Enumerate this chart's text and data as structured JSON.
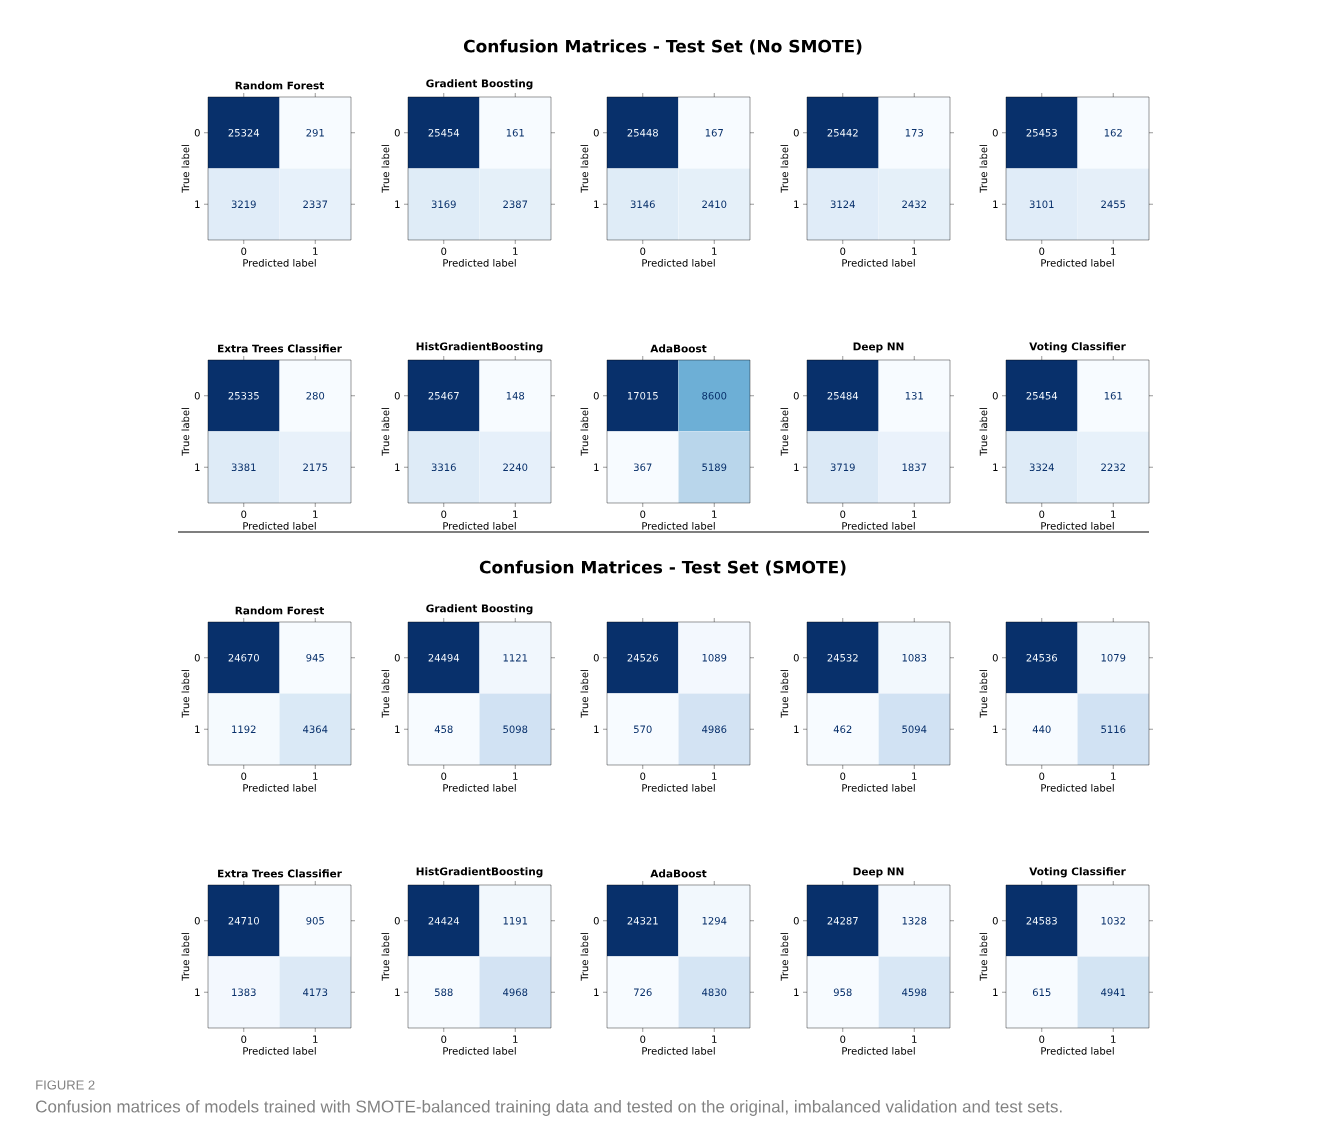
{
  "chart_data": [
    {
      "type": "heatmap",
      "title": "Random Forest",
      "xlabel": "Predicted label",
      "ylabel": "True label",
      "categories": [
        "0",
        "1"
      ],
      "y_categories": [
        "0",
        "1"
      ],
      "cells": [
        [
          25324,
          291
        ],
        [
          3219,
          2337
        ]
      ],
      "data_labels": true,
      "annotations": [
        "Confusion Matrices - Test Set (No SMOTE)"
      ]
    },
    {
      "type": "heatmap",
      "title": "Gradient Boosting",
      "xlabel": "Predicted label",
      "ylabel": "True label",
      "categories": [
        "0",
        "1"
      ],
      "y_categories": [
        "0",
        "1"
      ],
      "cells": [
        [
          25454,
          161
        ],
        [
          3169,
          2387
        ]
      ],
      "data_labels": true
    },
    {
      "type": "heatmap",
      "xlabel": "Predicted label",
      "ylabel": "True label",
      "categories": [
        "0",
        "1"
      ],
      "y_categories": [
        "0",
        "1"
      ],
      "cells": [
        [
          25448,
          167
        ],
        [
          3146,
          2410
        ]
      ],
      "data_labels": true
    },
    {
      "type": "heatmap",
      "xlabel": "Predicted label",
      "ylabel": "True label",
      "categories": [
        "0",
        "1"
      ],
      "y_categories": [
        "0",
        "1"
      ],
      "cells": [
        [
          25442,
          173
        ],
        [
          3124,
          2432
        ]
      ],
      "data_labels": true
    },
    {
      "type": "heatmap",
      "xlabel": "Predicted label",
      "ylabel": "True label",
      "categories": [
        "0",
        "1"
      ],
      "y_categories": [
        "0",
        "1"
      ],
      "cells": [
        [
          25453,
          162
        ],
        [
          3101,
          2455
        ]
      ],
      "data_labels": true
    },
    {
      "type": "heatmap",
      "title": "Extra Trees Classifier",
      "xlabel": "Predicted label",
      "ylabel": "True label",
      "categories": [
        "0",
        "1"
      ],
      "y_categories": [
        "0",
        "1"
      ],
      "cells": [
        [
          25335,
          280
        ],
        [
          3381,
          2175
        ]
      ],
      "data_labels": true
    },
    {
      "type": "heatmap",
      "title": "HistGradientBoosting",
      "xlabel": "Predicted label",
      "ylabel": "True label",
      "categories": [
        "0",
        "1"
      ],
      "y_categories": [
        "0",
        "1"
      ],
      "cells": [
        [
          25467,
          148
        ],
        [
          3316,
          2240
        ]
      ],
      "data_labels": true
    },
    {
      "type": "heatmap",
      "title": "AdaBoost",
      "xlabel": "Predicted label",
      "ylabel": "True label",
      "categories": [
        "0",
        "1"
      ],
      "y_categories": [
        "0",
        "1"
      ],
      "cells": [
        [
          17015,
          8600
        ],
        [
          367,
          5189
        ]
      ],
      "data_labels": true
    },
    {
      "type": "heatmap",
      "title": "Deep NN",
      "xlabel": "Predicted label",
      "ylabel": "True label",
      "categories": [
        "0",
        "1"
      ],
      "y_categories": [
        "0",
        "1"
      ],
      "cells": [
        [
          25484,
          131
        ],
        [
          3719,
          1837
        ]
      ],
      "data_labels": true
    },
    {
      "type": "heatmap",
      "title": "Voting Classifier",
      "xlabel": "Predicted label",
      "ylabel": "True label",
      "categories": [
        "0",
        "1"
      ],
      "y_categories": [
        "0",
        "1"
      ],
      "cells": [
        [
          25454,
          161
        ],
        [
          3324,
          2232
        ]
      ],
      "data_labels": true
    },
    {
      "type": "heatmap",
      "title": "Random Forest",
      "xlabel": "Predicted label",
      "ylabel": "True label",
      "categories": [
        "0",
        "1"
      ],
      "y_categories": [
        "0",
        "1"
      ],
      "cells": [
        [
          24670,
          945
        ],
        [
          1192,
          4364
        ]
      ],
      "data_labels": true,
      "annotations": [
        "Confusion Matrices - Test Set (SMOTE)"
      ]
    },
    {
      "type": "heatmap",
      "title": "Gradient Boosting",
      "xlabel": "Predicted label",
      "ylabel": "True label",
      "categories": [
        "0",
        "1"
      ],
      "y_categories": [
        "0",
        "1"
      ],
      "cells": [
        [
          24494,
          1121
        ],
        [
          458,
          5098
        ]
      ],
      "data_labels": true
    },
    {
      "type": "heatmap",
      "xlabel": "Predicted label",
      "ylabel": "True label",
      "categories": [
        "0",
        "1"
      ],
      "y_categories": [
        "0",
        "1"
      ],
      "cells": [
        [
          24526,
          1089
        ],
        [
          570,
          4986
        ]
      ],
      "data_labels": true
    },
    {
      "type": "heatmap",
      "xlabel": "Predicted label",
      "ylabel": "True label",
      "categories": [
        "0",
        "1"
      ],
      "y_categories": [
        "0",
        "1"
      ],
      "cells": [
        [
          24532,
          1083
        ],
        [
          462,
          5094
        ]
      ],
      "data_labels": true
    },
    {
      "type": "heatmap",
      "xlabel": "Predicted label",
      "ylabel": "True label",
      "categories": [
        "0",
        "1"
      ],
      "y_categories": [
        "0",
        "1"
      ],
      "cells": [
        [
          24536,
          1079
        ],
        [
          440,
          5116
        ]
      ],
      "data_labels": true
    },
    {
      "type": "heatmap",
      "title": "Extra Trees Classifier",
      "xlabel": "Predicted label",
      "ylabel": "True label",
      "categories": [
        "0",
        "1"
      ],
      "y_categories": [
        "0",
        "1"
      ],
      "cells": [
        [
          24710,
          905
        ],
        [
          1383,
          4173
        ]
      ],
      "data_labels": true
    },
    {
      "type": "heatmap",
      "title": "HistGradientBoosting",
      "xlabel": "Predicted label",
      "ylabel": "True label",
      "categories": [
        "0",
        "1"
      ],
      "y_categories": [
        "0",
        "1"
      ],
      "cells": [
        [
          24424,
          1191
        ],
        [
          588,
          4968
        ]
      ],
      "data_labels": true
    },
    {
      "type": "heatmap",
      "title": "AdaBoost",
      "xlabel": "Predicted label",
      "ylabel": "True label",
      "categories": [
        "0",
        "1"
      ],
      "y_categories": [
        "0",
        "1"
      ],
      "cells": [
        [
          24321,
          1294
        ],
        [
          726,
          4830
        ]
      ],
      "data_labels": true
    },
    {
      "type": "heatmap",
      "title": "Deep NN",
      "xlabel": "Predicted label",
      "ylabel": "True label",
      "categories": [
        "0",
        "1"
      ],
      "y_categories": [
        "0",
        "1"
      ],
      "cells": [
        [
          24287,
          1328
        ],
        [
          958,
          4598
        ]
      ],
      "data_labels": true
    },
    {
      "type": "heatmap",
      "title": "Voting Classifier",
      "xlabel": "Predicted label",
      "ylabel": "True label",
      "categories": [
        "0",
        "1"
      ],
      "y_categories": [
        "0",
        "1"
      ],
      "cells": [
        [
          24583,
          1032
        ],
        [
          615,
          4941
        ]
      ],
      "data_labels": true,
      "annotations": [
        "FIGURE 2",
        "Confusion matrices of models trained with SMOTE-balanced training data and tested on the original, imbalanced validation and test sets."
      ]
    }
  ]
}
